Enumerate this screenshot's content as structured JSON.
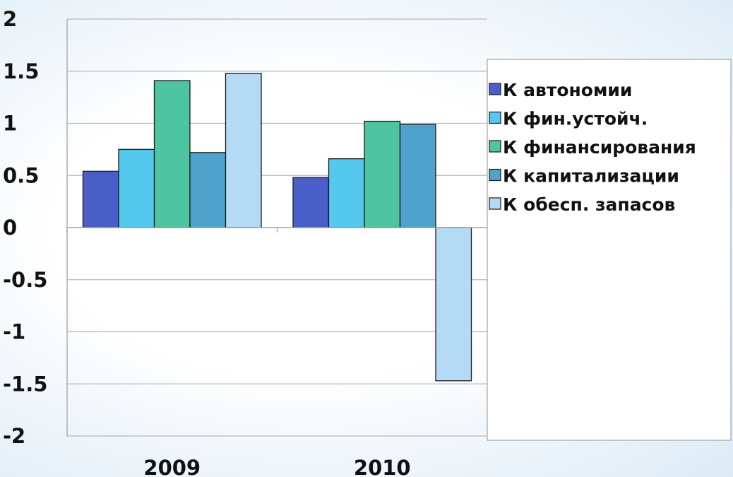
{
  "chart_data": {
    "type": "bar",
    "title": "",
    "xlabel": "",
    "ylabel": "",
    "categories": [
      "2009",
      "2010"
    ],
    "ylim": [
      -2,
      2
    ],
    "yticks": [
      2,
      1.5,
      1,
      0.5,
      0,
      -0.5,
      -1,
      -1.5,
      -2
    ],
    "grid": true,
    "legend_position": "right",
    "series": [
      {
        "name": "К автономии",
        "color": "#4a5ec8",
        "values": [
          0.54,
          0.48
        ]
      },
      {
        "name": "К фин.устойч.",
        "color": "#55c8ee",
        "values": [
          0.75,
          0.66
        ]
      },
      {
        "name": "К финансирования",
        "color": "#4fc4a0",
        "values": [
          1.41,
          1.02
        ]
      },
      {
        "name": "К капитализации",
        "color": "#4ea2cc",
        "values": [
          0.72,
          0.99
        ]
      },
      {
        "name": "К обесп. запасов",
        "color": "#b5daf5",
        "values": [
          1.48,
          -1.47
        ]
      }
    ]
  }
}
